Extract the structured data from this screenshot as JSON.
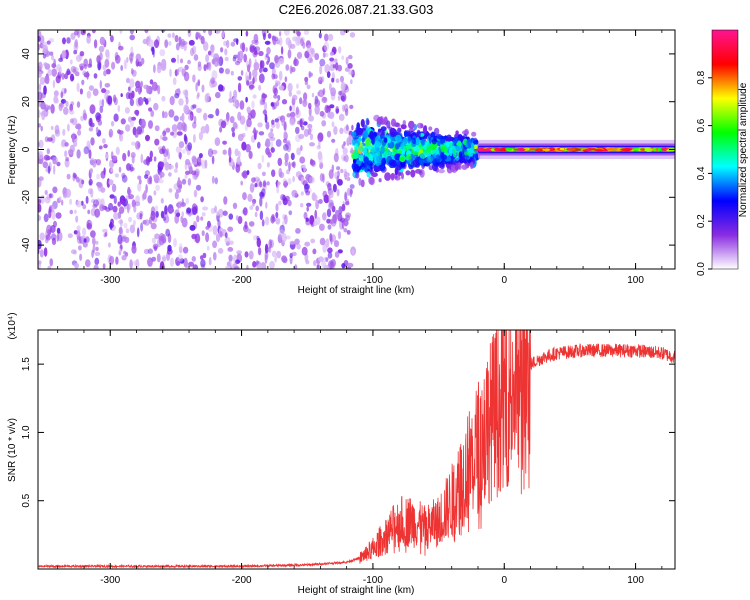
{
  "title": "C2E6.2026.087.21.33.G03",
  "chart_data": [
    {
      "id": "spectrogram",
      "type": "heatmap",
      "xlabel": "Height of straight line (km)",
      "ylabel": "Frequency (Hz)",
      "xlim": [
        -355,
        130
      ],
      "ylim": [
        -50,
        50
      ],
      "xticks": [
        -300,
        -200,
        -100,
        0,
        100
      ],
      "xtick_labels": [
        "-300",
        "-200",
        "-100",
        "0",
        "100"
      ],
      "yticks": [
        -40,
        -20,
        0,
        20,
        40
      ],
      "ytick_labels": [
        "-40",
        "-20",
        "0",
        "20",
        "40"
      ],
      "colorbar": {
        "label": "Normalized spectral amplitude",
        "range": [
          0,
          1
        ],
        "ticks": [
          0.0,
          0.2,
          0.4,
          0.6,
          0.8
        ],
        "tick_labels": [
          "0.0",
          "0.2",
          "0.4",
          "0.6",
          "0.8"
        ],
        "colors": [
          "#ffffff",
          "#8a2be2",
          "#0000ff",
          "#00ffff",
          "#00ff00",
          "#ffff00",
          "#ff0000",
          "#ff1493"
        ]
      },
      "regions": [
        {
          "name": "noise",
          "x": [
            -355,
            -115
          ],
          "y": [
            -50,
            50
          ],
          "amplitude": 0.15
        },
        {
          "name": "transition",
          "x": [
            -115,
            -20
          ],
          "y": [
            -15,
            15
          ],
          "amplitude": 0.45
        },
        {
          "name": "carrier",
          "x": [
            -20,
            130
          ],
          "y": [
            -2,
            2
          ],
          "amplitude": 0.85
        }
      ]
    },
    {
      "id": "snr",
      "type": "line",
      "xlabel": "Height of straight line (km)",
      "ylabel": "SNR (10 * v/v)",
      "yscale_label": "(x10⁴)",
      "xlim": [
        -355,
        130
      ],
      "ylim": [
        0,
        1.75
      ],
      "xticks": [
        -300,
        -200,
        -100,
        0,
        100
      ],
      "xtick_labels": [
        "-300",
        "-200",
        "-100",
        "0",
        "100"
      ],
      "yticks": [
        0.5,
        1.0,
        1.5
      ],
      "ytick_labels": [
        "0.5",
        "1.0",
        "1.5"
      ],
      "color": "#ee3333",
      "series": [
        {
          "name": "SNR",
          "x": [
            -355,
            -300,
            -250,
            -200,
            -150,
            -120,
            -110,
            -100,
            -90,
            -80,
            -70,
            -60,
            -50,
            -40,
            -30,
            -20,
            -10,
            0,
            10,
            20,
            30,
            40,
            60,
            80,
            100,
            120,
            130
          ],
          "values": [
            0.02,
            0.02,
            0.02,
            0.02,
            0.03,
            0.05,
            0.08,
            0.15,
            0.25,
            0.35,
            0.35,
            0.3,
            0.35,
            0.5,
            0.7,
            0.9,
            1.1,
            1.3,
            1.45,
            1.5,
            1.55,
            1.58,
            1.6,
            1.6,
            1.6,
            1.58,
            1.55
          ]
        }
      ]
    }
  ]
}
